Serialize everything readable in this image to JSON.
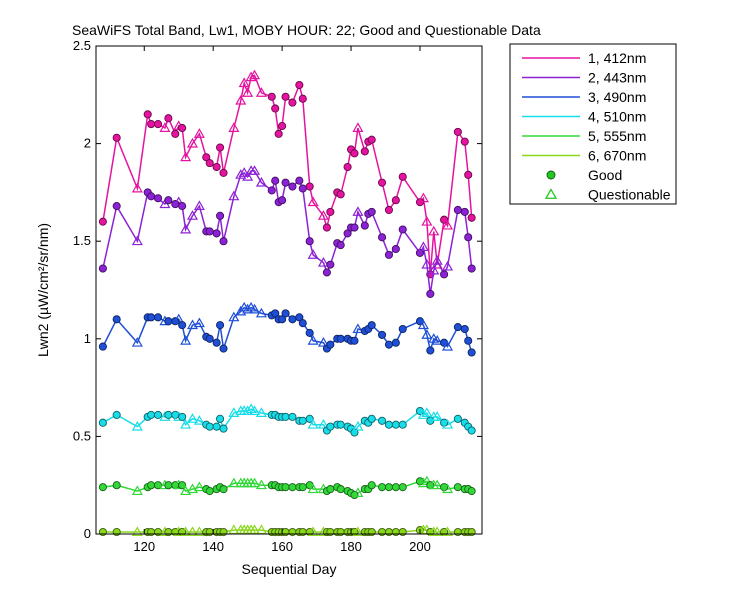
{
  "chart_data": {
    "type": "line",
    "title": "SeaWiFS Total Band, Lw1, MOBY HOUR: 22;  Good and Questionable Data",
    "xlabel": "Sequential Day",
    "ylabel": "Lwn2 (µW/cm²/sr/nm)",
    "xlim": [
      106,
      218
    ],
    "ylim": [
      0,
      2.5
    ],
    "xticks": [
      120,
      140,
      160,
      180,
      200
    ],
    "yticks": [
      0,
      0.5,
      1,
      1.5,
      2,
      2.5
    ],
    "ytick_labels": [
      "0",
      "0.5",
      "1",
      "1.5",
      "2",
      "2.5"
    ],
    "grid": false,
    "legend_position": "outside-right",
    "legend_markers": [
      {
        "label": "Good",
        "marker": "circle",
        "color": "#22c822"
      },
      {
        "label": "Questionable",
        "marker": "triangle",
        "color": "#22c822"
      }
    ],
    "x": [
      108,
      112,
      118,
      121,
      122,
      124,
      126,
      127,
      129,
      130,
      131,
      132,
      134,
      136,
      138,
      139,
      141,
      142,
      143,
      146,
      148,
      149,
      150,
      151,
      152,
      154,
      157,
      158,
      159,
      160,
      161,
      163,
      165,
      166,
      168,
      169,
      172,
      173,
      174,
      176,
      177,
      179,
      180,
      181,
      182,
      184,
      185,
      186,
      189,
      191,
      193,
      195,
      200,
      201,
      202,
      203,
      204,
      205,
      207,
      208,
      211,
      213,
      214,
      215
    ],
    "series": [
      {
        "name": "1, 412nm",
        "color": "#e5139f",
        "values": [
          1.6,
          2.03,
          1.77,
          2.15,
          2.1,
          2.1,
          2.08,
          2.13,
          2.05,
          2.09,
          2.08,
          1.93,
          2.0,
          2.05,
          1.93,
          1.9,
          1.88,
          1.98,
          1.85,
          2.08,
          2.22,
          2.31,
          2.26,
          2.34,
          2.35,
          2.26,
          2.24,
          2.18,
          2.05,
          2.09,
          2.24,
          2.21,
          2.3,
          2.23,
          1.78,
          1.7,
          1.63,
          1.57,
          1.65,
          1.75,
          1.74,
          1.88,
          1.97,
          1.95,
          2.08,
          1.96,
          2.01,
          2.02,
          1.8,
          1.66,
          1.71,
          1.83,
          1.7,
          1.72,
          1.6,
          1.33,
          1.55,
          1.38,
          1.61,
          1.58,
          2.06,
          2.01,
          1.84,
          1.62
        ],
        "markers": [
          "o",
          "o",
          "t",
          "o",
          "o",
          "o",
          "t",
          "o",
          "o",
          "t",
          "o",
          "t",
          "t",
          "t",
          "o",
          "o",
          "o",
          "o",
          "o",
          "t",
          "t",
          "t",
          "t",
          "t",
          "t",
          "t",
          "o",
          "o",
          "o",
          "o",
          "o",
          "o",
          "o",
          "o",
          "o",
          "t",
          "t",
          "o",
          "o",
          "o",
          "o",
          "o",
          "o",
          "o",
          "t",
          "o",
          "o",
          "o",
          "o",
          "o",
          "o",
          "o",
          "o",
          "t",
          "t",
          "o",
          "t",
          "t",
          "o",
          "t",
          "o",
          "o",
          "o",
          "o"
        ]
      },
      {
        "name": "2, 443nm",
        "color": "#8c22d6",
        "values": [
          1.36,
          1.68,
          1.5,
          1.75,
          1.73,
          1.72,
          1.69,
          1.71,
          1.69,
          1.7,
          1.68,
          1.56,
          1.63,
          1.68,
          1.55,
          1.55,
          1.54,
          1.63,
          1.5,
          1.73,
          1.84,
          1.85,
          1.83,
          1.86,
          1.86,
          1.8,
          1.76,
          1.81,
          1.7,
          1.71,
          1.8,
          1.78,
          1.81,
          1.77,
          1.5,
          1.43,
          1.39,
          1.34,
          1.38,
          1.49,
          1.48,
          1.54,
          1.57,
          1.57,
          1.65,
          1.58,
          1.64,
          1.65,
          1.52,
          1.43,
          1.46,
          1.56,
          1.44,
          1.47,
          1.38,
          1.23,
          1.35,
          1.4,
          1.33,
          1.37,
          1.66,
          1.65,
          1.52,
          1.36
        ],
        "markers": [
          "o",
          "o",
          "t",
          "o",
          "o",
          "o",
          "t",
          "o",
          "o",
          "t",
          "o",
          "t",
          "t",
          "t",
          "o",
          "o",
          "o",
          "o",
          "o",
          "t",
          "t",
          "t",
          "t",
          "t",
          "t",
          "t",
          "o",
          "o",
          "o",
          "o",
          "o",
          "o",
          "o",
          "o",
          "o",
          "t",
          "t",
          "o",
          "o",
          "o",
          "o",
          "o",
          "o",
          "o",
          "t",
          "o",
          "o",
          "o",
          "o",
          "o",
          "o",
          "o",
          "o",
          "t",
          "t",
          "o",
          "t",
          "t",
          "o",
          "t",
          "o",
          "o",
          "o",
          "o"
        ]
      },
      {
        "name": "3, 490nm",
        "color": "#1e4fd6",
        "values": [
          0.96,
          1.1,
          0.98,
          1.11,
          1.11,
          1.11,
          1.09,
          1.09,
          1.09,
          1.1,
          1.07,
          0.99,
          1.07,
          1.08,
          1.01,
          1.0,
          0.98,
          1.07,
          0.95,
          1.11,
          1.14,
          1.16,
          1.15,
          1.16,
          1.15,
          1.13,
          1.12,
          1.13,
          1.1,
          1.1,
          1.13,
          1.1,
          1.11,
          1.08,
          1.03,
          0.99,
          0.98,
          0.95,
          0.97,
          1.0,
          1.0,
          1.0,
          0.99,
          0.99,
          1.05,
          1.04,
          1.05,
          1.07,
          1.02,
          0.97,
          0.98,
          1.05,
          1.09,
          1.07,
          1.02,
          0.94,
          1.0,
          0.99,
          0.98,
          0.96,
          1.06,
          1.05,
          0.99,
          0.93
        ],
        "markers": [
          "o",
          "o",
          "t",
          "o",
          "o",
          "o",
          "t",
          "o",
          "o",
          "t",
          "o",
          "t",
          "t",
          "t",
          "o",
          "o",
          "o",
          "o",
          "o",
          "t",
          "t",
          "t",
          "t",
          "t",
          "t",
          "t",
          "o",
          "o",
          "o",
          "o",
          "o",
          "o",
          "o",
          "o",
          "o",
          "t",
          "t",
          "o",
          "o",
          "o",
          "o",
          "o",
          "o",
          "o",
          "t",
          "o",
          "o",
          "o",
          "o",
          "o",
          "o",
          "o",
          "o",
          "t",
          "t",
          "o",
          "t",
          "t",
          "o",
          "t",
          "o",
          "o",
          "o",
          "o"
        ]
      },
      {
        "name": "4, 510nm",
        "color": "#18dde8",
        "values": [
          0.57,
          0.61,
          0.55,
          0.6,
          0.61,
          0.61,
          0.6,
          0.61,
          0.61,
          0.6,
          0.6,
          0.56,
          0.59,
          0.58,
          0.56,
          0.55,
          0.55,
          0.59,
          0.54,
          0.62,
          0.63,
          0.63,
          0.63,
          0.64,
          0.63,
          0.62,
          0.61,
          0.61,
          0.6,
          0.6,
          0.6,
          0.6,
          0.58,
          0.58,
          0.59,
          0.56,
          0.56,
          0.53,
          0.55,
          0.56,
          0.56,
          0.55,
          0.54,
          0.52,
          0.55,
          0.58,
          0.57,
          0.59,
          0.58,
          0.56,
          0.56,
          0.56,
          0.63,
          0.61,
          0.62,
          0.58,
          0.6,
          0.6,
          0.57,
          0.56,
          0.59,
          0.57,
          0.55,
          0.53
        ],
        "markers": [
          "o",
          "o",
          "t",
          "o",
          "o",
          "o",
          "t",
          "o",
          "o",
          "t",
          "o",
          "t",
          "t",
          "t",
          "o",
          "o",
          "o",
          "o",
          "o",
          "t",
          "t",
          "t",
          "t",
          "t",
          "t",
          "t",
          "o",
          "o",
          "o",
          "o",
          "o",
          "o",
          "o",
          "o",
          "o",
          "t",
          "t",
          "o",
          "o",
          "o",
          "o",
          "o",
          "o",
          "o",
          "t",
          "o",
          "o",
          "o",
          "o",
          "o",
          "o",
          "o",
          "o",
          "t",
          "t",
          "o",
          "t",
          "t",
          "o",
          "t",
          "o",
          "o",
          "o",
          "o"
        ]
      },
      {
        "name": "5, 555nm",
        "color": "#32d838",
        "values": [
          0.24,
          0.25,
          0.22,
          0.24,
          0.25,
          0.25,
          0.25,
          0.25,
          0.25,
          0.25,
          0.25,
          0.22,
          0.23,
          0.24,
          0.23,
          0.22,
          0.23,
          0.24,
          0.23,
          0.26,
          0.26,
          0.26,
          0.26,
          0.26,
          0.26,
          0.25,
          0.25,
          0.25,
          0.24,
          0.24,
          0.24,
          0.24,
          0.24,
          0.24,
          0.25,
          0.23,
          0.23,
          0.22,
          0.23,
          0.24,
          0.23,
          0.22,
          0.21,
          0.2,
          0.21,
          0.23,
          0.23,
          0.25,
          0.24,
          0.24,
          0.24,
          0.24,
          0.27,
          0.26,
          0.27,
          0.25,
          0.25,
          0.25,
          0.24,
          0.23,
          0.24,
          0.23,
          0.23,
          0.22
        ],
        "markers": [
          "o",
          "o",
          "t",
          "o",
          "o",
          "o",
          "t",
          "o",
          "o",
          "t",
          "o",
          "t",
          "t",
          "t",
          "o",
          "o",
          "o",
          "o",
          "o",
          "t",
          "t",
          "t",
          "t",
          "t",
          "t",
          "t",
          "o",
          "o",
          "o",
          "o",
          "o",
          "o",
          "o",
          "o",
          "o",
          "t",
          "t",
          "o",
          "o",
          "o",
          "o",
          "o",
          "o",
          "o",
          "t",
          "o",
          "o",
          "o",
          "o",
          "o",
          "o",
          "o",
          "o",
          "t",
          "t",
          "o",
          "t",
          "t",
          "o",
          "t",
          "o",
          "o",
          "o",
          "o"
        ]
      },
      {
        "name": "6, 670nm",
        "color": "#8ad81c",
        "values": [
          0.01,
          0.01,
          0.01,
          0.01,
          0.01,
          0.01,
          0.01,
          0.01,
          0.01,
          0.01,
          0.01,
          0.01,
          0.01,
          0.01,
          0.01,
          0.01,
          0.01,
          0.01,
          0.01,
          0.02,
          0.02,
          0.02,
          0.02,
          0.02,
          0.02,
          0.02,
          0.01,
          0.01,
          0.01,
          0.01,
          0.01,
          0.01,
          0.01,
          0.01,
          0.01,
          0.01,
          0.01,
          0.01,
          0.01,
          0.01,
          0.01,
          0.01,
          0.01,
          0.01,
          0.01,
          0.01,
          0.01,
          0.01,
          0.01,
          0.01,
          0.01,
          0.01,
          0.02,
          0.02,
          0.02,
          0.01,
          0.01,
          0.01,
          0.01,
          0.01,
          0.01,
          0.01,
          0.01,
          0.01
        ],
        "markers": [
          "o",
          "o",
          "t",
          "o",
          "o",
          "o",
          "t",
          "o",
          "o",
          "t",
          "o",
          "t",
          "t",
          "t",
          "o",
          "o",
          "o",
          "o",
          "o",
          "t",
          "t",
          "t",
          "t",
          "t",
          "t",
          "t",
          "o",
          "o",
          "o",
          "o",
          "o",
          "o",
          "o",
          "o",
          "o",
          "t",
          "t",
          "o",
          "o",
          "o",
          "o",
          "o",
          "o",
          "o",
          "t",
          "o",
          "o",
          "o",
          "o",
          "o",
          "o",
          "o",
          "o",
          "t",
          "t",
          "o",
          "t",
          "t",
          "o",
          "t",
          "o",
          "o",
          "o",
          "o"
        ]
      }
    ]
  }
}
